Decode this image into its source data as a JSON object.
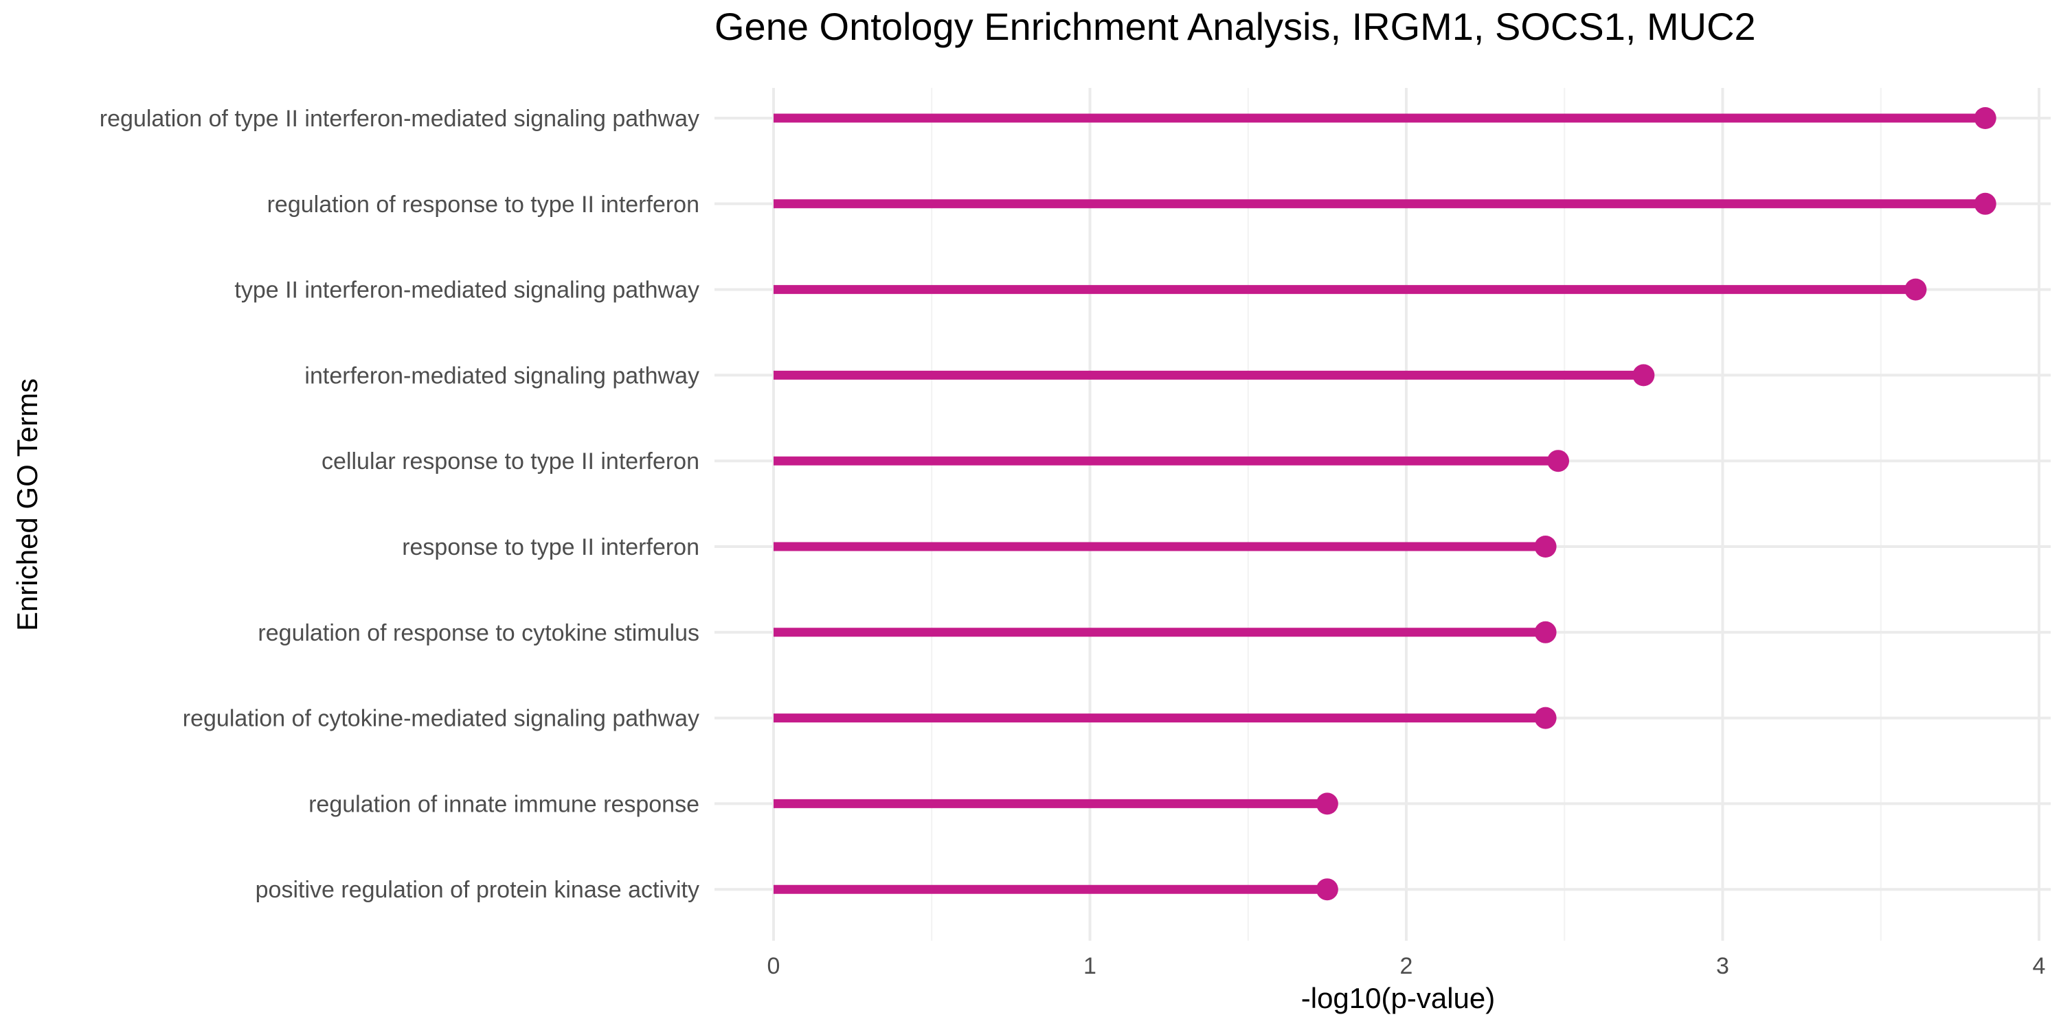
{
  "chart_data": {
    "type": "lollipop",
    "title": "Gene Ontology Enrichment Analysis, IRGM1, SOCS1, MUC2",
    "xlabel": "-log10(p-value)",
    "ylabel": "Enriched GO Terms",
    "xlim": [
      0,
      4
    ],
    "xticks": [
      "0",
      "1",
      "2",
      "3",
      "4"
    ],
    "grid": true,
    "color": "#c51b8a",
    "categories": [
      "regulation of type II interferon-mediated signaling pathway",
      "regulation of response to type II interferon",
      "type II interferon-mediated signaling pathway",
      "interferon-mediated signaling pathway",
      "cellular response to type II interferon",
      "response to type II interferon",
      "regulation of response to cytokine stimulus",
      "regulation of cytokine-mediated signaling pathway",
      "regulation of innate immune response",
      "positive regulation of protein kinase activity"
    ],
    "values": [
      3.83,
      3.83,
      3.61,
      2.75,
      2.48,
      2.44,
      2.44,
      2.44,
      1.75,
      1.75
    ]
  }
}
